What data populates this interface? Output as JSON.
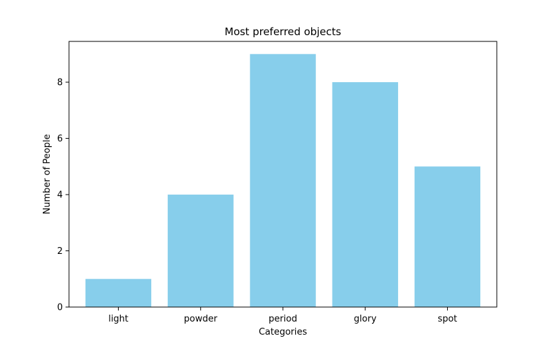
{
  "chart_data": {
    "type": "bar",
    "title": "Most preferred objects",
    "xlabel": "Categories",
    "ylabel": "Number of People",
    "categories": [
      "light",
      "powder",
      "period",
      "glory",
      "spot"
    ],
    "values": [
      1,
      4,
      9,
      8,
      5
    ],
    "yticks": [
      0,
      2,
      4,
      6,
      8
    ],
    "ylim": [
      0,
      9.45
    ],
    "bar_color": "#87ceeb",
    "grid": false,
    "legend": false
  }
}
